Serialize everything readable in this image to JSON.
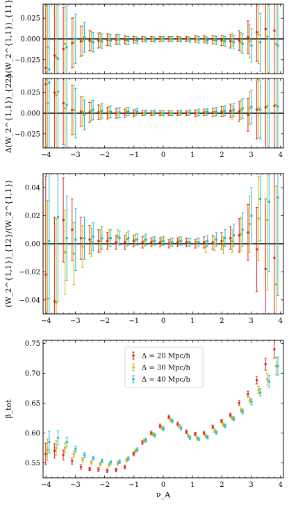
{
  "colors": {
    "d20": "#d62728",
    "d30": "#c8b400",
    "d40": "#17becf",
    "zero_line": "#000000"
  },
  "chart_data": [
    {
      "id": "p1",
      "type": "scatter",
      "ylabel": "Δ(W_2^{1,1})_{11}",
      "xlim": [
        -4.1,
        4.1
      ],
      "ylim": [
        -0.042,
        0.042
      ],
      "xticks": [
        -4,
        -3,
        -2,
        -1,
        0,
        1,
        2,
        3,
        4
      ],
      "xtick_labels": [
        "",
        "",
        "",
        "",
        "",
        "",
        "",
        "",
        ""
      ],
      "yticks": [
        -0.025,
        0.0,
        0.025
      ],
      "ytick_labels": [
        "−0.025",
        "0.000",
        "0.025"
      ],
      "zero_line": true,
      "x": [
        -3.95,
        -3.65,
        -3.35,
        -3.05,
        -2.75,
        -2.45,
        -2.15,
        -1.85,
        -1.55,
        -1.25,
        -0.95,
        -0.65,
        -0.35,
        -0.05,
        0.25,
        0.55,
        0.85,
        1.15,
        1.45,
        1.75,
        2.05,
        2.35,
        2.65,
        2.95,
        3.25,
        3.55,
        3.85
      ],
      "series": [
        {
          "name": "Δ = 20 Mpc/h",
          "color_key": "d20",
          "offset": -0.06,
          "values": [
            -0.035,
            -0.02,
            -0.012,
            -0.005,
            -0.003,
            -0.002,
            -0.002,
            -0.001,
            -0.001,
            -0.001,
            -0.001,
            0.0,
            0.0,
            0.0,
            0.0,
            0.0,
            0.0,
            0.0,
            0.0,
            -0.001,
            -0.002,
            -0.003,
            -0.002,
            0.002,
            0.008,
            0.012,
            0.01
          ],
          "errors": [
            0.09,
            0.07,
            0.05,
            0.03,
            0.018,
            0.012,
            0.009,
            0.007,
            0.006,
            0.005,
            0.004,
            0.003,
            0.003,
            0.003,
            0.003,
            0.003,
            0.003,
            0.004,
            0.004,
            0.005,
            0.006,
            0.008,
            0.012,
            0.02,
            0.035,
            0.06,
            0.09
          ]
        },
        {
          "name": "Δ = 30 Mpc/h",
          "color_key": "d30",
          "offset": 0.0,
          "values": [
            -0.01,
            -0.022,
            -0.006,
            -0.004,
            -0.002,
            -0.003,
            -0.001,
            -0.001,
            0.0,
            -0.002,
            -0.001,
            0.0,
            0.0,
            0.0,
            0.0,
            0.0,
            0.0,
            0.0,
            -0.001,
            -0.001,
            -0.002,
            -0.001,
            -0.004,
            -0.003,
            0.005,
            0.003,
            -0.006
          ],
          "errors": [
            0.09,
            0.07,
            0.05,
            0.03,
            0.018,
            0.012,
            0.009,
            0.007,
            0.006,
            0.005,
            0.004,
            0.003,
            0.003,
            0.003,
            0.003,
            0.003,
            0.003,
            0.004,
            0.004,
            0.005,
            0.006,
            0.008,
            0.012,
            0.02,
            0.035,
            0.06,
            0.09
          ]
        },
        {
          "name": "Δ = 40 Mpc/h",
          "color_key": "d40",
          "offset": 0.06,
          "values": [
            -0.037,
            -0.024,
            -0.01,
            0.0,
            0.002,
            -0.004,
            -0.003,
            -0.002,
            -0.001,
            -0.002,
            -0.002,
            -0.001,
            -0.001,
            0.0,
            0.0,
            -0.001,
            -0.001,
            -0.001,
            -0.002,
            -0.002,
            -0.003,
            -0.004,
            -0.006,
            -0.008,
            -0.004,
            0.0,
            -0.008
          ],
          "errors": [
            0.09,
            0.07,
            0.05,
            0.03,
            0.018,
            0.012,
            0.009,
            0.007,
            0.006,
            0.005,
            0.004,
            0.003,
            0.003,
            0.003,
            0.003,
            0.003,
            0.003,
            0.004,
            0.004,
            0.005,
            0.006,
            0.008,
            0.012,
            0.02,
            0.035,
            0.06,
            0.09
          ]
        }
      ]
    },
    {
      "id": "p2",
      "type": "scatter",
      "ylabel": "Δ(W_2^{1,1})_{22}",
      "xlim": [
        -4.1,
        4.1
      ],
      "ylim": [
        -0.042,
        0.042
      ],
      "xticks": [
        -4,
        -3,
        -2,
        -1,
        0,
        1,
        2,
        3,
        4
      ],
      "xtick_labels": [
        "−4",
        "−3",
        "−2",
        "−1",
        "0",
        "1",
        "2",
        "3",
        "4"
      ],
      "yticks": [
        -0.025,
        0.0,
        0.025
      ],
      "ytick_labels": [
        "−0.025",
        "0.000",
        "0.025"
      ],
      "zero_line": true,
      "x": [
        -3.95,
        -3.65,
        -3.35,
        -3.05,
        -2.75,
        -2.45,
        -2.15,
        -1.85,
        -1.55,
        -1.25,
        -0.95,
        -0.65,
        -0.35,
        -0.05,
        0.25,
        0.55,
        0.85,
        1.15,
        1.45,
        1.75,
        2.05,
        2.35,
        2.65,
        2.95,
        3.25,
        3.55,
        3.85
      ],
      "series": [
        {
          "name": "Δ = 20 Mpc/h",
          "color_key": "d20",
          "offset": -0.06,
          "values": [
            0.035,
            0.025,
            0.012,
            0.004,
            0.002,
            0.001,
            0.001,
            0.0,
            0.0,
            0.0,
            0.0,
            0.0,
            0.0,
            0.0,
            0.0,
            0.0,
            0.0,
            0.0,
            0.001,
            0.001,
            0.002,
            0.003,
            0.002,
            -0.002,
            0.004,
            0.007,
            0.009
          ],
          "errors": [
            0.09,
            0.07,
            0.05,
            0.03,
            0.018,
            0.012,
            0.009,
            0.007,
            0.006,
            0.005,
            0.004,
            0.003,
            0.003,
            0.003,
            0.003,
            0.003,
            0.003,
            0.004,
            0.004,
            0.005,
            0.006,
            0.008,
            0.012,
            0.02,
            0.035,
            0.06,
            0.09
          ]
        },
        {
          "name": "Δ = 30 Mpc/h",
          "color_key": "d30",
          "offset": 0.0,
          "values": [
            0.012,
            0.022,
            0.006,
            0.004,
            0.002,
            0.003,
            0.001,
            0.001,
            0.0,
            0.002,
            0.001,
            0.0,
            0.0,
            0.0,
            0.0,
            0.0,
            0.0,
            0.0,
            0.001,
            0.001,
            0.002,
            0.001,
            0.004,
            0.006,
            0.006,
            0.009,
            0.01
          ],
          "errors": [
            0.09,
            0.07,
            0.05,
            0.03,
            0.018,
            0.012,
            0.009,
            0.007,
            0.006,
            0.005,
            0.004,
            0.003,
            0.003,
            0.003,
            0.003,
            0.003,
            0.003,
            0.004,
            0.004,
            0.005,
            0.006,
            0.008,
            0.012,
            0.02,
            0.035,
            0.06,
            0.09
          ]
        },
        {
          "name": "Δ = 40 Mpc/h",
          "color_key": "d40",
          "offset": 0.06,
          "values": [
            0.037,
            0.026,
            0.01,
            0.0,
            -0.002,
            0.004,
            0.003,
            0.002,
            0.001,
            0.002,
            0.002,
            0.001,
            0.001,
            0.0,
            0.0,
            0.001,
            0.001,
            0.001,
            0.002,
            0.002,
            0.003,
            0.004,
            0.006,
            0.008,
            0.004,
            0.0,
            0.008
          ],
          "errors": [
            0.09,
            0.07,
            0.05,
            0.03,
            0.018,
            0.012,
            0.009,
            0.007,
            0.006,
            0.005,
            0.004,
            0.003,
            0.003,
            0.003,
            0.003,
            0.003,
            0.003,
            0.004,
            0.004,
            0.005,
            0.006,
            0.008,
            0.012,
            0.02,
            0.035,
            0.06,
            0.09
          ]
        }
      ]
    },
    {
      "id": "p3",
      "type": "scatter",
      "ylabel": "(W_2^{1,1})_{12}/⟨W_2^{1,1}⟩",
      "xlim": [
        -4.1,
        4.1
      ],
      "ylim": [
        -0.05,
        0.05
      ],
      "xticks": [
        -4,
        -3,
        -2,
        -1,
        0,
        1,
        2,
        3,
        4
      ],
      "xtick_labels": [
        "−4",
        "−3",
        "−2",
        "−1",
        "0",
        "1",
        "2",
        "3",
        "4"
      ],
      "yticks": [
        -0.04,
        -0.02,
        0.0,
        0.02,
        0.04
      ],
      "ytick_labels": [
        "−0.04",
        "−0.02",
        "0.00",
        "0.02",
        "0.04"
      ],
      "zero_line": true,
      "x": [
        -3.95,
        -3.65,
        -3.35,
        -3.05,
        -2.75,
        -2.45,
        -2.15,
        -1.85,
        -1.55,
        -1.25,
        -0.95,
        -0.65,
        -0.35,
        -0.05,
        0.25,
        0.55,
        0.85,
        1.15,
        1.45,
        1.75,
        2.05,
        2.35,
        2.65,
        2.95,
        3.25,
        3.55,
        3.85
      ],
      "series": [
        {
          "name": "Δ = 20 Mpc/h",
          "color_key": "d20",
          "offset": -0.06,
          "values": [
            -0.022,
            -0.041,
            0.017,
            0.01,
            0.004,
            0.003,
            0.002,
            0.002,
            0.001,
            0.001,
            0.002,
            0.001,
            0.001,
            0.001,
            0.0,
            0.001,
            0.001,
            0.0,
            0.001,
            0.001,
            0.002,
            0.004,
            0.006,
            0.008,
            -0.004,
            -0.018,
            -0.01
          ],
          "errors": [
            0.07,
            0.06,
            0.03,
            0.022,
            0.015,
            0.01,
            0.008,
            0.006,
            0.005,
            0.005,
            0.004,
            0.004,
            0.003,
            0.003,
            0.003,
            0.003,
            0.003,
            0.003,
            0.004,
            0.005,
            0.006,
            0.008,
            0.012,
            0.02,
            0.03,
            0.05,
            0.07
          ]
        },
        {
          "name": "Δ = 30 Mpc/h",
          "color_key": "d30",
          "offset": 0.0,
          "values": [
            -0.039,
            -0.042,
            -0.006,
            -0.007,
            -0.002,
            0.001,
            0.002,
            0.004,
            0.005,
            0.003,
            0.003,
            0.002,
            0.002,
            0.002,
            0.001,
            0.002,
            0.001,
            0.001,
            -0.002,
            0.0,
            -0.001,
            0.002,
            0.007,
            0.014,
            0.018,
            0.017,
            -0.029
          ],
          "errors": [
            0.07,
            0.06,
            0.03,
            0.022,
            0.015,
            0.01,
            0.008,
            0.006,
            0.005,
            0.005,
            0.004,
            0.004,
            0.003,
            0.003,
            0.003,
            0.003,
            0.003,
            0.003,
            0.004,
            0.005,
            0.006,
            0.008,
            0.012,
            0.02,
            0.03,
            0.05,
            0.07
          ]
        },
        {
          "name": "Δ = 40 Mpc/h",
          "color_key": "d40",
          "offset": 0.06,
          "values": [
            0.002,
            0.019,
            0.004,
            0.003,
            0.004,
            0.005,
            0.004,
            0.004,
            0.004,
            0.004,
            0.003,
            0.003,
            0.002,
            0.002,
            0.001,
            0.002,
            0.001,
            0.001,
            0.002,
            0.003,
            0.004,
            0.006,
            0.01,
            0.02,
            0.032,
            0.03,
            0.033
          ],
          "errors": [
            0.07,
            0.06,
            0.03,
            0.022,
            0.015,
            0.01,
            0.008,
            0.006,
            0.005,
            0.005,
            0.004,
            0.004,
            0.003,
            0.003,
            0.003,
            0.003,
            0.003,
            0.003,
            0.004,
            0.005,
            0.006,
            0.008,
            0.012,
            0.02,
            0.03,
            0.05,
            0.07
          ]
        }
      ]
    },
    {
      "id": "p4",
      "type": "scatter",
      "ylabel": "β_tot",
      "xlabel": "ν_A",
      "xlim": [
        -4.1,
        4.1
      ],
      "ylim": [
        0.525,
        0.755
      ],
      "xticks": [
        -4,
        -3,
        -2,
        -1,
        0,
        1,
        2,
        3,
        4
      ],
      "xtick_labels": [
        "−4",
        "−3",
        "−2",
        "−1",
        "0",
        "1",
        "2",
        "3",
        "4"
      ],
      "yticks": [
        0.55,
        0.6,
        0.65,
        0.7,
        0.75
      ],
      "ytick_labels": [
        "0.55",
        "0.60",
        "0.65",
        "0.70",
        "0.75"
      ],
      "zero_line": false,
      "legend": {
        "position": "top-center",
        "entries": [
          "Δ = 20 Mpc/h",
          "Δ = 30 Mpc/h",
          "Δ = 40 Mpc/h"
        ]
      },
      "x": [
        -3.95,
        -3.65,
        -3.35,
        -3.05,
        -2.75,
        -2.45,
        -2.15,
        -1.85,
        -1.55,
        -1.25,
        -0.95,
        -0.65,
        -0.35,
        -0.05,
        0.25,
        0.55,
        0.85,
        1.15,
        1.45,
        1.75,
        2.05,
        2.35,
        2.65,
        2.95,
        3.25,
        3.55,
        3.85
      ],
      "series": [
        {
          "name": "Δ = 20 Mpc/h",
          "color_key": "d20",
          "offset": -0.06,
          "values": [
            0.565,
            0.57,
            0.563,
            0.553,
            0.543,
            0.54,
            0.539,
            0.537,
            0.538,
            0.543,
            0.565,
            0.584,
            0.6,
            0.612,
            0.627,
            0.615,
            0.602,
            0.598,
            0.6,
            0.61,
            0.62,
            0.63,
            0.65,
            0.665,
            0.688,
            0.715,
            0.74
          ],
          "errors": [
            0.018,
            0.012,
            0.008,
            0.005,
            0.004,
            0.003,
            0.003,
            0.003,
            0.003,
            0.003,
            0.003,
            0.003,
            0.003,
            0.003,
            0.003,
            0.003,
            0.003,
            0.003,
            0.003,
            0.003,
            0.003,
            0.003,
            0.004,
            0.005,
            0.006,
            0.01,
            0.015
          ]
        },
        {
          "name": "Δ = 30 Mpc/h",
          "color_key": "d30",
          "offset": 0.0,
          "values": [
            0.572,
            0.575,
            0.575,
            0.565,
            0.555,
            0.551,
            0.548,
            0.547,
            0.549,
            0.555,
            0.57,
            0.587,
            0.598,
            0.609,
            0.622,
            0.611,
            0.595,
            0.592,
            0.595,
            0.604,
            0.614,
            0.625,
            0.638,
            0.655,
            0.672,
            0.69,
            0.712
          ],
          "errors": [
            0.018,
            0.012,
            0.008,
            0.005,
            0.004,
            0.003,
            0.003,
            0.003,
            0.003,
            0.003,
            0.003,
            0.003,
            0.003,
            0.003,
            0.003,
            0.003,
            0.003,
            0.003,
            0.003,
            0.003,
            0.003,
            0.003,
            0.004,
            0.005,
            0.006,
            0.01,
            0.015
          ]
        },
        {
          "name": "Δ = 40 Mpc/h",
          "color_key": "d40",
          "offset": 0.06,
          "values": [
            0.585,
            0.592,
            0.585,
            0.573,
            0.563,
            0.558,
            0.553,
            0.551,
            0.552,
            0.557,
            0.572,
            0.588,
            0.596,
            0.607,
            0.62,
            0.608,
            0.592,
            0.59,
            0.593,
            0.601,
            0.612,
            0.624,
            0.636,
            0.652,
            0.668,
            0.686,
            0.712
          ],
          "errors": [
            0.018,
            0.012,
            0.008,
            0.005,
            0.004,
            0.003,
            0.003,
            0.003,
            0.003,
            0.003,
            0.003,
            0.003,
            0.003,
            0.003,
            0.003,
            0.003,
            0.003,
            0.003,
            0.003,
            0.003,
            0.003,
            0.003,
            0.004,
            0.005,
            0.006,
            0.01,
            0.015
          ]
        }
      ]
    }
  ]
}
